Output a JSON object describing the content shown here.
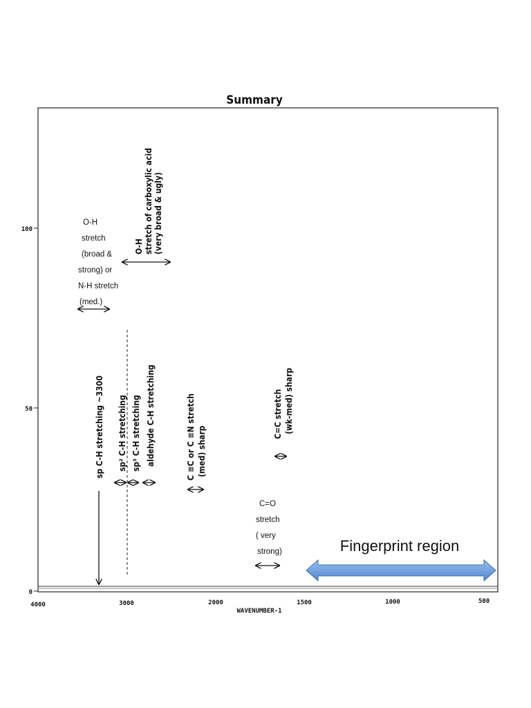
{
  "title": "Summary",
  "axes": {
    "x_ticks": [
      "4000",
      "3000",
      "2000",
      "1500",
      "1000",
      "500"
    ],
    "y_ticks": [
      "100",
      "50",
      "0"
    ],
    "x_label": "WAVENUMBER-1"
  },
  "annotations": [
    {
      "lines": [
        "O-H",
        "stretch",
        "(broad &",
        "strong) or",
        "N-H stretch",
        "(med.)"
      ]
    },
    {
      "lines": [
        "O-H",
        "stretch of carboxylic acid",
        "(very broad & ugly)"
      ]
    },
    {
      "lines": [
        "sp C-H stretching ~3300"
      ]
    },
    {
      "lines": [
        "sp² C-H stretching"
      ]
    },
    {
      "lines": [
        "sp³ C-H stretching"
      ]
    },
    {
      "lines": [
        "aldehyde C-H stretching"
      ]
    },
    {
      "lines": [
        "C ≡C or C ≡N stretch",
        "(med) sharp"
      ]
    },
    {
      "lines": [
        "C=C stretch",
        "(wk-med) sharp"
      ]
    },
    {
      "lines": [
        "C=O",
        "stretch",
        "( very",
        " strong)"
      ]
    },
    {
      "lines": [
        "Fingerprint region"
      ]
    }
  ]
}
